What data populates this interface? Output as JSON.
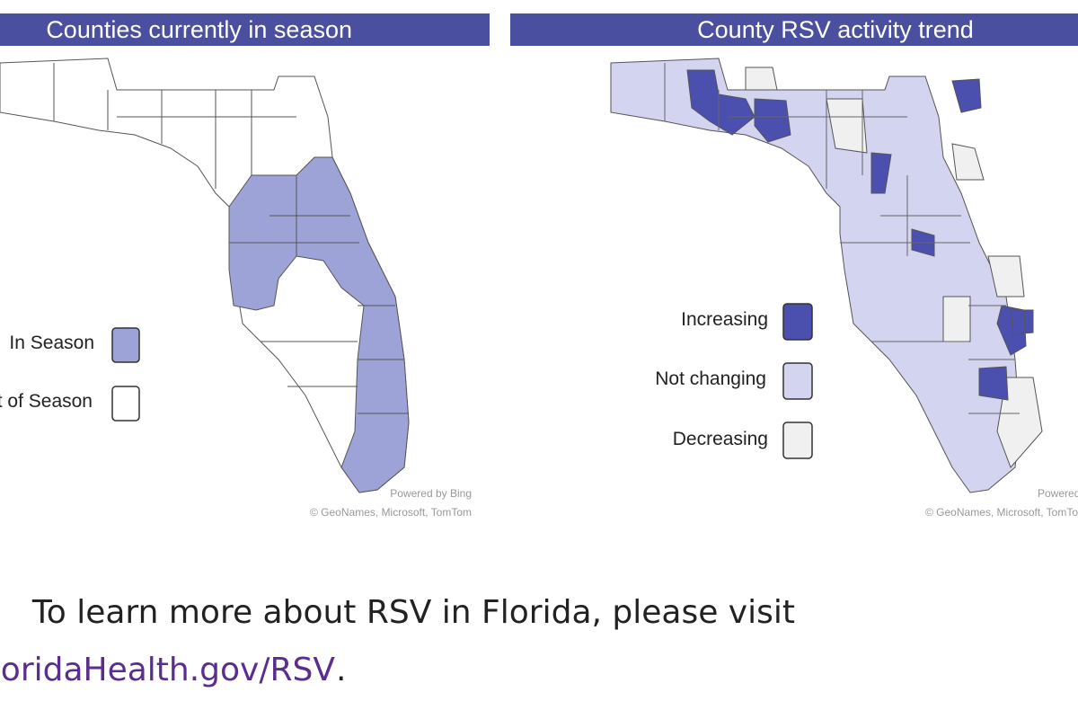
{
  "maps": [
    {
      "title": "Counties currently in season",
      "legend": [
        "In Season",
        "Out of Season"
      ],
      "attribution": [
        "Powered by Bing",
        "© GeoNames, Microsoft, TomTom"
      ]
    },
    {
      "title": "County RSV activity trend",
      "legend": [
        "Increasing",
        "Not changing",
        "Decreasing"
      ],
      "attribution": [
        "Powered by Bing",
        "© GeoNames, Microsoft, TomTom"
      ]
    }
  ],
  "footer": {
    "text": "To learn more about RSV in Florida, please visit",
    "link": "FloridaHealth.gov/RSV",
    "end": "."
  }
}
